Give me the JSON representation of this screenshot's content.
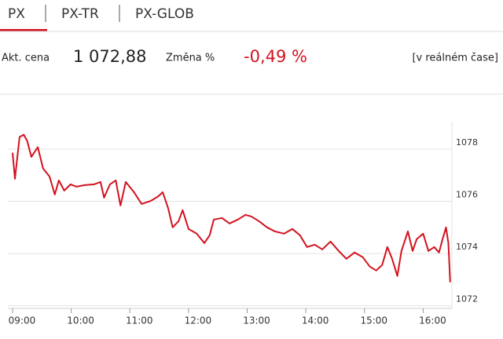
{
  "tabs": [
    "PX",
    "PX-TR",
    "PX-GLOB"
  ],
  "quote": {
    "price_label": "Akt. cena",
    "price": "1 072,88",
    "change_label": "Změna %",
    "change": "-0,49 %",
    "mode": "[v reálném čase]"
  },
  "chart_data": {
    "type": "line",
    "color": "#d3121f",
    "grid": true,
    "x": [
      9.0,
      9.04,
      9.12,
      9.19,
      9.25,
      9.32,
      9.43,
      9.52,
      9.63,
      9.72,
      9.79,
      9.88,
      9.99,
      10.09,
      10.23,
      10.39,
      10.5,
      10.56,
      10.66,
      10.76,
      10.84,
      10.93,
      11.07,
      11.2,
      11.36,
      11.49,
      11.56,
      11.65,
      11.73,
      11.83,
      11.9,
      12.0,
      12.14,
      12.27,
      12.36,
      12.43,
      12.57,
      12.7,
      12.84,
      12.97,
      13.07,
      13.2,
      13.34,
      13.47,
      13.63,
      13.77,
      13.9,
      14.02,
      14.15,
      14.28,
      14.42,
      14.56,
      14.69,
      14.83,
      14.97,
      15.09,
      15.2,
      15.3,
      15.39,
      15.47,
      15.56,
      15.63,
      15.74,
      15.82,
      15.89,
      16.0,
      16.09,
      16.19,
      16.27,
      16.33,
      16.39,
      16.43,
      16.46
    ],
    "values": [
      1077.86,
      1076.86,
      1078.46,
      1078.55,
      1078.31,
      1077.7,
      1078.07,
      1077.26,
      1076.95,
      1076.26,
      1076.8,
      1076.41,
      1076.65,
      1076.56,
      1076.62,
      1076.65,
      1076.74,
      1076.14,
      1076.65,
      1076.8,
      1075.84,
      1076.74,
      1076.35,
      1075.9,
      1076.02,
      1076.2,
      1076.35,
      1075.75,
      1075.0,
      1075.24,
      1075.66,
      1074.94,
      1074.76,
      1074.4,
      1074.7,
      1075.3,
      1075.36,
      1075.15,
      1075.3,
      1075.48,
      1075.42,
      1075.24,
      1075.0,
      1074.85,
      1074.76,
      1074.94,
      1074.7,
      1074.25,
      1074.34,
      1074.16,
      1074.46,
      1074.1,
      1073.8,
      1074.04,
      1073.86,
      1073.5,
      1073.35,
      1073.56,
      1074.25,
      1073.8,
      1073.14,
      1074.1,
      1074.85,
      1074.1,
      1074.55,
      1074.76,
      1074.1,
      1074.25,
      1074.04,
      1074.55,
      1075.0,
      1074.4,
      1072.9
    ],
    "xlim": [
      8.92,
      16.49
    ],
    "xticks": [
      {
        "value": 9,
        "label": "09:00"
      },
      {
        "value": 10,
        "label": "10:00"
      },
      {
        "value": 11,
        "label": "11:00"
      },
      {
        "value": 12,
        "label": "12:00"
      },
      {
        "value": 13,
        "label": "13:00"
      },
      {
        "value": 14,
        "label": "14:00"
      },
      {
        "value": 15,
        "label": "15:00"
      },
      {
        "value": 16,
        "label": "16:00"
      }
    ],
    "ylim": [
      1071.9,
      1079.05
    ],
    "yticks": [
      1072,
      1074,
      1076,
      1078
    ]
  }
}
